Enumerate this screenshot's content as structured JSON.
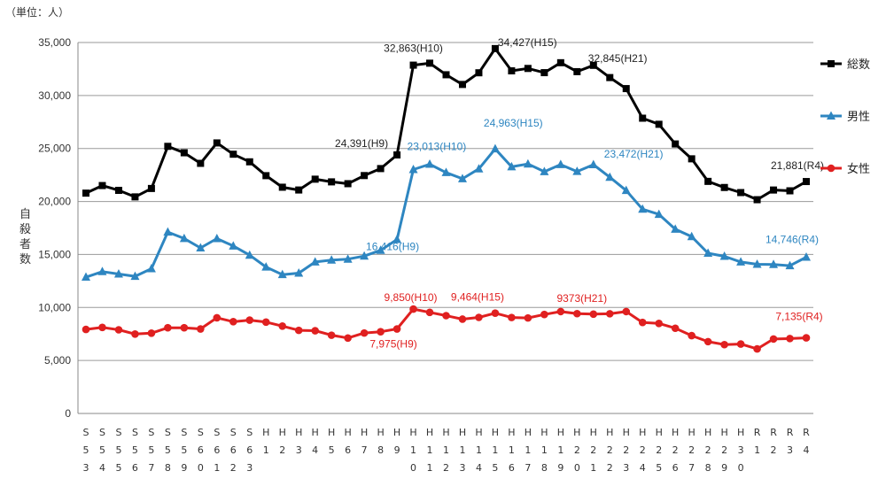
{
  "chart_data": {
    "type": "line",
    "unit_label": "（単位：人）",
    "ylabel": "自殺者数",
    "ylim": [
      0,
      35000
    ],
    "yticks": [
      0,
      5000,
      10000,
      15000,
      20000,
      25000,
      30000,
      35000
    ],
    "ytick_labels": [
      "0",
      "5,000",
      "10,000",
      "15,000",
      "20,000",
      "25,000",
      "30,000",
      "35,000"
    ],
    "grid": true,
    "legend_position": "right",
    "categories": [
      "S53",
      "S54",
      "S55",
      "S56",
      "S57",
      "S58",
      "S59",
      "S60",
      "S61",
      "S62",
      "S63",
      "H1",
      "H2",
      "H3",
      "H4",
      "H5",
      "H6",
      "H7",
      "H8",
      "H9",
      "H10",
      "H11",
      "H12",
      "H13",
      "H14",
      "H15",
      "H16",
      "H17",
      "H18",
      "H19",
      "H20",
      "H21",
      "H22",
      "H23",
      "H24",
      "H25",
      "H26",
      "H27",
      "H28",
      "H29",
      "H30",
      "R1",
      "R2",
      "R3",
      "R4"
    ],
    "series": [
      {
        "name": "総数",
        "color": "#000000",
        "marker": "square",
        "values": [
          20788,
          21503,
          21048,
          20434,
          21228,
          25202,
          24596,
          23599,
          25524,
          24460,
          23742,
          22436,
          21346,
          21084,
          22104,
          21851,
          21679,
          22445,
          23104,
          24391,
          32863,
          33048,
          31957,
          31042,
          32143,
          34427,
          32325,
          32552,
          32155,
          33093,
          32249,
          32845,
          31690,
          30651,
          27858,
          27283,
          25427,
          24025,
          21897,
          21321,
          20840,
          20169,
          21081,
          21007,
          21881
        ]
      },
      {
        "name": "男性",
        "color": "#2e86c1",
        "marker": "triangle",
        "values": [
          12859,
          13386,
          13155,
          12942,
          13654,
          17116,
          16508,
          15624,
          16497,
          15802,
          14934,
          13818,
          13102,
          13242,
          14296,
          14468,
          14560,
          14853,
          15393,
          16416,
          23013,
          23512,
          22727,
          22144,
          23080,
          24963,
          23272,
          23540,
          22813,
          23478,
          22831,
          23472,
          22283,
          21036,
          19273,
          18787,
          17386,
          16681,
          15121,
          14826,
          14290,
          14078,
          14055,
          13939,
          14746
        ]
      },
      {
        "name": "女性",
        "color": "#e02020",
        "marker": "circle",
        "values": [
          7929,
          8117,
          7893,
          7492,
          7574,
          8086,
          8088,
          7975,
          9027,
          8658,
          8808,
          8618,
          8244,
          7842,
          7808,
          7383,
          7119,
          7592,
          7711,
          7975,
          9850,
          9536,
          9230,
          8898,
          9063,
          9464,
          9053,
          9012,
          9342,
          9615,
          9418,
          9373,
          9407,
          9615,
          8585,
          8496,
          8041,
          7344,
          6776,
          6495,
          6550,
          6091,
          7026,
          7068,
          7135
        ]
      }
    ],
    "annotations": [
      {
        "series": 0,
        "index": 19,
        "text": "24,391(H9)"
      },
      {
        "series": 0,
        "index": 20,
        "text": "32,863(H10)"
      },
      {
        "series": 0,
        "index": 25,
        "text": "34,427(H15)"
      },
      {
        "series": 0,
        "index": 31,
        "text": "32,845(H21)"
      },
      {
        "series": 0,
        "index": 44,
        "text": "21,881(R4)"
      },
      {
        "series": 1,
        "index": 19,
        "text": "16,416(H9)"
      },
      {
        "series": 1,
        "index": 20,
        "text": "23,013(H10)"
      },
      {
        "series": 1,
        "index": 25,
        "text": "24,963(H15)"
      },
      {
        "series": 1,
        "index": 31,
        "text": "23,472(H21)"
      },
      {
        "series": 1,
        "index": 44,
        "text": "14,746(R4)"
      },
      {
        "series": 2,
        "index": 19,
        "text": "7,975(H9)"
      },
      {
        "series": 2,
        "index": 20,
        "text": "9,850(H10)"
      },
      {
        "series": 2,
        "index": 25,
        "text": "9,464(H15)"
      },
      {
        "series": 2,
        "index": 31,
        "text": "9373(H21)"
      },
      {
        "series": 2,
        "index": 44,
        "text": "7,135(R4)"
      }
    ]
  }
}
